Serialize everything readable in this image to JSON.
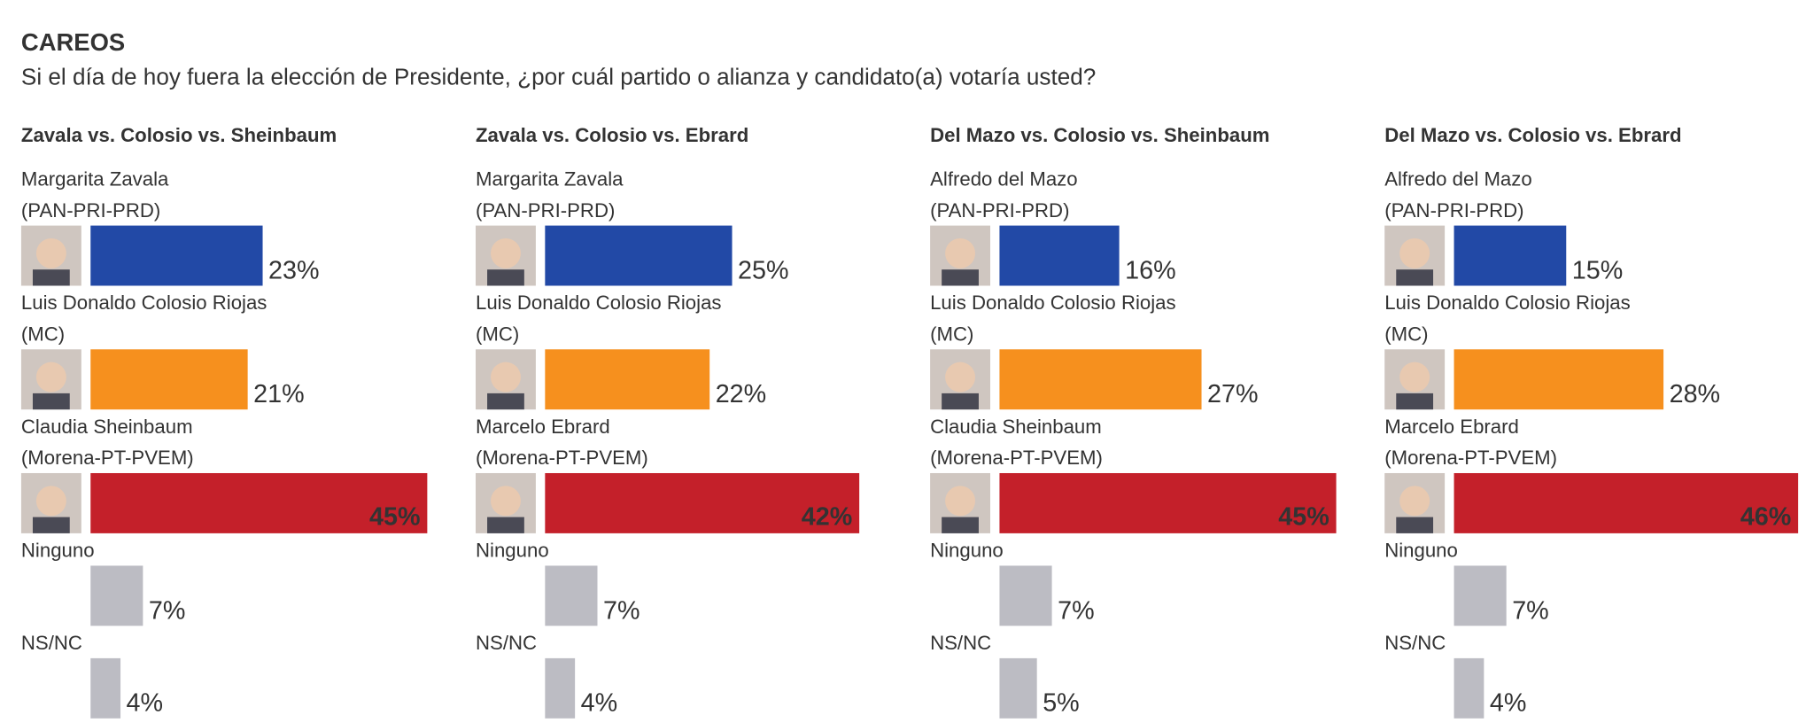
{
  "page": {
    "title": "CAREOS",
    "subtitle": "Si el día de hoy fuera la elección de Presidente, ¿por cuál partido o alianza y candidato(a) votaría usted?"
  },
  "chart_data": [
    {
      "type": "bar",
      "title": "Zavala vs. Colosio vs. Sheinbaum",
      "categories": [
        "Margarita Zavala",
        "Luis Donaldo Colosio Riojas",
        "Claudia Sheinbaum",
        "Ninguno",
        "NS/NC"
      ],
      "parties": [
        "(PAN-PRI-PRD)",
        "(MC)",
        "(Morena-PT-PVEM)",
        null,
        null
      ],
      "values": [
        23,
        21,
        45,
        7,
        4
      ],
      "value_labels": [
        "23%",
        "21%",
        "45%",
        "7%",
        "4%"
      ],
      "colors": [
        "#2249a6",
        "#f6901e",
        "#c4202a",
        "#bcbcc3",
        "#bcbcc3"
      ]
    },
    {
      "type": "bar",
      "title": "Zavala vs. Colosio vs. Ebrard",
      "categories": [
        "Margarita Zavala",
        "Luis Donaldo Colosio Riojas",
        "Marcelo Ebrard",
        "Ninguno",
        "NS/NC"
      ],
      "parties": [
        "(PAN-PRI-PRD)",
        "(MC)",
        "(Morena-PT-PVEM)",
        null,
        null
      ],
      "values": [
        25,
        22,
        42,
        7,
        4
      ],
      "value_labels": [
        "25%",
        "22%",
        "42%",
        "7%",
        "4%"
      ],
      "colors": [
        "#2249a6",
        "#f6901e",
        "#c4202a",
        "#bcbcc3",
        "#bcbcc3"
      ]
    },
    {
      "type": "bar",
      "title": "Del Mazo vs. Colosio vs. Sheinbaum",
      "categories": [
        "Alfredo del Mazo",
        "Luis Donaldo Colosio Riojas",
        "Claudia Sheinbaum",
        "Ninguno",
        "NS/NC"
      ],
      "parties": [
        "(PAN-PRI-PRD)",
        "(MC)",
        "(Morena-PT-PVEM)",
        null,
        null
      ],
      "values": [
        16,
        27,
        45,
        7,
        5
      ],
      "value_labels": [
        "16%",
        "27%",
        "45%",
        "7%",
        "5%"
      ],
      "colors": [
        "#2249a6",
        "#f6901e",
        "#c4202a",
        "#bcbcc3",
        "#bcbcc3"
      ]
    },
    {
      "type": "bar",
      "title": "Del Mazo vs. Colosio vs. Ebrard",
      "categories": [
        "Alfredo del Mazo",
        "Luis Donaldo Colosio Riojas",
        "Marcelo Ebrard",
        "Ninguno",
        "NS/NC"
      ],
      "parties": [
        "(PAN-PRI-PRD)",
        "(MC)",
        "(Morena-PT-PVEM)",
        null,
        null
      ],
      "values": [
        15,
        28,
        46,
        7,
        4
      ],
      "value_labels": [
        "15%",
        "28%",
        "46%",
        "7%",
        "4%"
      ],
      "colors": [
        "#2249a6",
        "#f6901e",
        "#c4202a",
        "#bcbcc3",
        "#bcbcc3"
      ]
    }
  ]
}
